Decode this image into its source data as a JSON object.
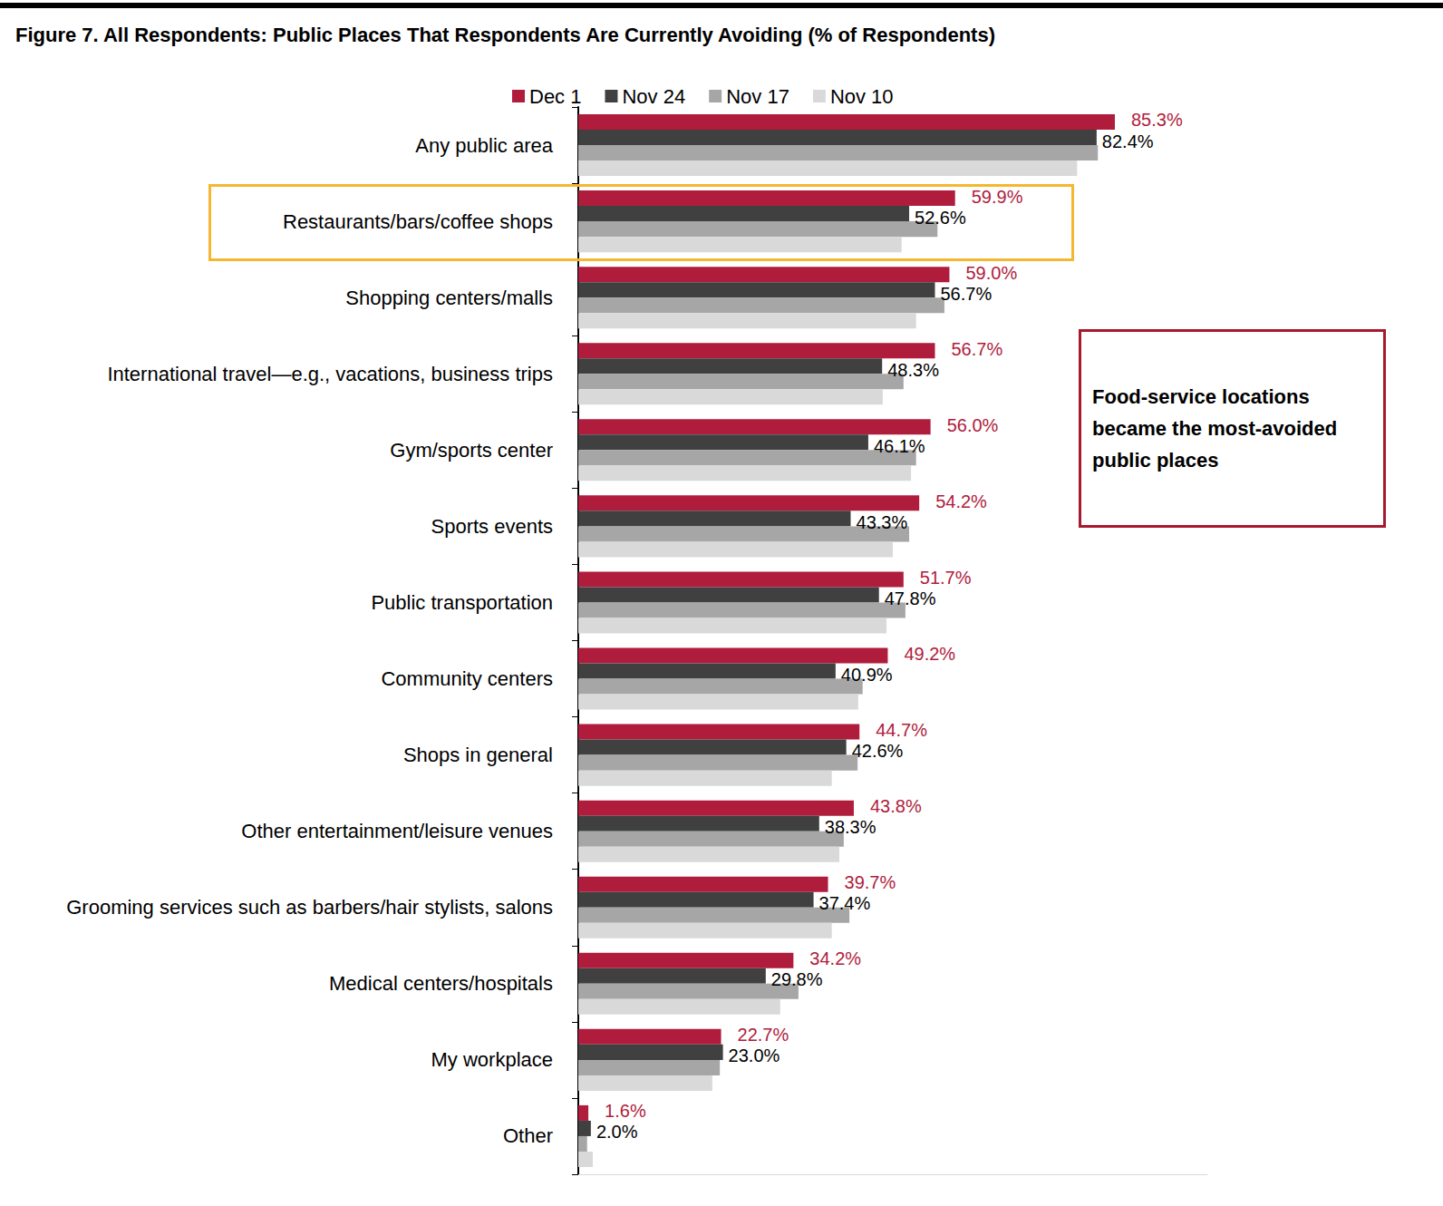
{
  "chart_data": {
    "type": "bar",
    "orientation": "horizontal",
    "title": "Figure 7. All Respondents: Public Places That Respondents Are Currently Avoiding (% of Respondents)",
    "annotation": "Food-service locations became the most-avoided public places",
    "categories": [
      "Any public area",
      "Restaurants/bars/coffee shops",
      "Shopping centers/malls",
      "International travel—e.g., vacations, business trips",
      "Gym/sports center",
      "Sports events",
      "Public transportation",
      "Community centers",
      "Shops in general",
      "Other entertainment/leisure venues",
      "Grooming services such as barbers/hair stylists, salons",
      "Medical centers/hospitals",
      "My workplace",
      "Other"
    ],
    "series": [
      {
        "name": "Dec 1",
        "color": "#b01c3c",
        "data_labels": true,
        "values": [
          85.3,
          59.9,
          59.0,
          56.7,
          56.0,
          54.2,
          51.7,
          49.2,
          44.7,
          43.8,
          39.7,
          34.2,
          22.7,
          1.6
        ],
        "value_labels": [
          "85.3%",
          "59.9%",
          "59.0%",
          "56.7%",
          "56.0%",
          "54.2%",
          "51.7%",
          "49.2%",
          "44.7%",
          "43.8%",
          "39.7%",
          "34.2%",
          "22.7%",
          "1.6%"
        ]
      },
      {
        "name": "Nov 24",
        "color": "#404040",
        "data_labels": true,
        "values": [
          82.4,
          52.6,
          56.7,
          48.3,
          46.1,
          43.3,
          47.8,
          40.9,
          42.6,
          38.3,
          37.4,
          29.8,
          23.0,
          2.0
        ],
        "value_labels": [
          "82.4%",
          "52.6%",
          "56.7%",
          "48.3%",
          "46.1%",
          "43.3%",
          "47.8%",
          "40.9%",
          "42.6%",
          "38.3%",
          "37.4%",
          "29.8%",
          "23.0%",
          "2.0%"
        ]
      },
      {
        "name": "Nov 17",
        "color": "#a6a6a6",
        "data_labels": false,
        "values": [
          82.6,
          57.1,
          58.2,
          51.7,
          53.7,
          52.6,
          52.0,
          45.2,
          44.4,
          42.2,
          43.1,
          35.0,
          22.5,
          1.4
        ]
      },
      {
        "name": "Nov 10",
        "color": "#d9d9d9",
        "data_labels": false,
        "values": [
          79.3,
          51.4,
          53.7,
          48.4,
          52.9,
          50.0,
          49.0,
          44.5,
          40.3,
          41.5,
          40.3,
          32.1,
          21.3,
          2.3
        ]
      }
    ],
    "xlim": [
      0,
      100
    ],
    "grid": false,
    "tick_labels": "y",
    "legend": "top"
  }
}
